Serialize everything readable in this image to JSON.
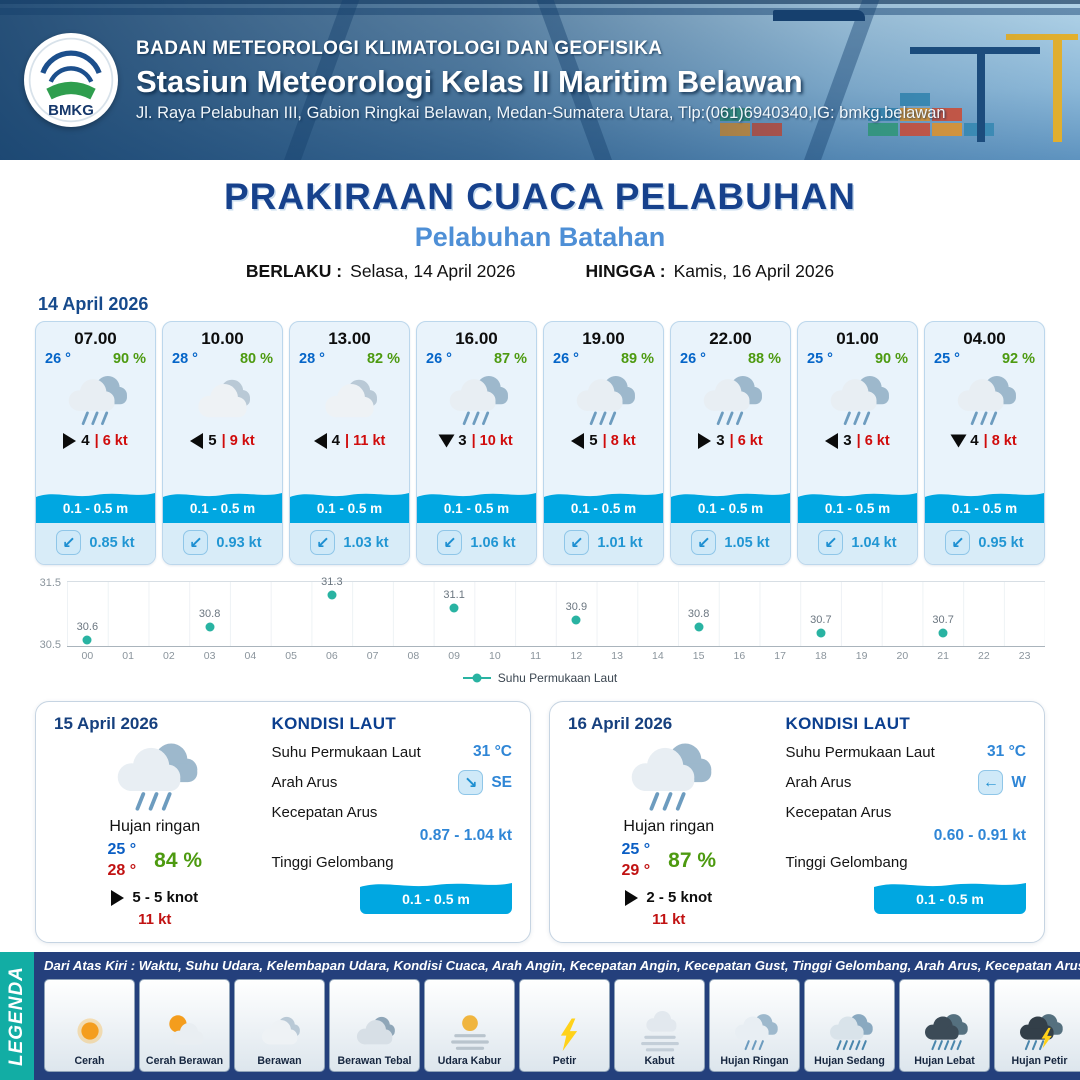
{
  "header": {
    "logo": "BMKG",
    "agency": "BADAN METEOROLOGI KLIMATOLOGI DAN GEOFISIKA",
    "station": "Stasiun Meteorologi Kelas II Maritim Belawan",
    "address": "Jl. Raya Pelabuhan III, Gabion Ringkai Belawan, Medan-Sumatera Utara, Tlp:(061)6940340,IG: bmkg.belawan"
  },
  "title": {
    "main": "PRAKIRAAN CUACA PELABUHAN",
    "port": "Pelabuhan Batahan",
    "berlaku_label": "BERLAKU :",
    "berlaku": "Selasa, 14 April 2026",
    "hingga_label": "HINGGA :",
    "hingga": "Kamis, 16 April 2026",
    "date_label": "14 April 2026"
  },
  "hourly": [
    {
      "time": "07.00",
      "temp": "26 °",
      "rh": "90 %",
      "icon": "hujan-ringan",
      "wind_arrow": "right",
      "wind": "4",
      "gust": "| 6 kt",
      "wave": "0.1 - 0.5 m",
      "current_arrow": "↙",
      "current": "0.85 kt"
    },
    {
      "time": "10.00",
      "temp": "28 °",
      "rh": "80 %",
      "icon": "berawan",
      "wind_arrow": "left",
      "wind": "5",
      "gust": "| 9 kt",
      "wave": "0.1 - 0.5 m",
      "current_arrow": "↙",
      "current": "0.93 kt"
    },
    {
      "time": "13.00",
      "temp": "28 °",
      "rh": "82 %",
      "icon": "berawan",
      "wind_arrow": "left",
      "wind": "4",
      "gust": "| 11 kt",
      "wave": "0.1 - 0.5 m",
      "current_arrow": "↙",
      "current": "1.03 kt"
    },
    {
      "time": "16.00",
      "temp": "26 °",
      "rh": "87 %",
      "icon": "hujan-ringan",
      "wind_arrow": "down",
      "wind": "3",
      "gust": "| 10 kt",
      "wave": "0.1 - 0.5 m",
      "current_arrow": "↙",
      "current": "1.06 kt"
    },
    {
      "time": "19.00",
      "temp": "26 °",
      "rh": "89 %",
      "icon": "hujan-ringan",
      "wind_arrow": "left",
      "wind": "5",
      "gust": "| 8 kt",
      "wave": "0.1 - 0.5 m",
      "current_arrow": "↙",
      "current": "1.01 kt"
    },
    {
      "time": "22.00",
      "temp": "26 °",
      "rh": "88 %",
      "icon": "hujan-ringan",
      "wind_arrow": "right",
      "wind": "3",
      "gust": "| 6 kt",
      "wave": "0.1 - 0.5 m",
      "current_arrow": "↙",
      "current": "1.05 kt"
    },
    {
      "time": "01.00",
      "temp": "25 °",
      "rh": "90 %",
      "icon": "hujan-ringan",
      "wind_arrow": "left",
      "wind": "3",
      "gust": "| 6 kt",
      "wave": "0.1 - 0.5 m",
      "current_arrow": "↙",
      "current": "1.04 kt"
    },
    {
      "time": "04.00",
      "temp": "25 °",
      "rh": "92 %",
      "icon": "hujan-ringan",
      "wind_arrow": "down",
      "wind": "4",
      "gust": "| 8 kt",
      "wave": "0.1 - 0.5 m",
      "current_arrow": "↙",
      "current": "0.95 kt"
    }
  ],
  "chart_data": {
    "type": "scatter",
    "x": [
      0,
      3,
      6,
      9,
      12,
      15,
      18,
      21
    ],
    "values": [
      30.6,
      30.8,
      31.3,
      31.1,
      30.9,
      30.8,
      30.7,
      30.7
    ],
    "x_ticks": [
      "00",
      "01",
      "02",
      "03",
      "04",
      "05",
      "06",
      "07",
      "08",
      "09",
      "10",
      "11",
      "12",
      "13",
      "14",
      "15",
      "16",
      "17",
      "18",
      "19",
      "20",
      "21",
      "22",
      "23"
    ],
    "ylim": [
      30.5,
      31.5
    ],
    "y_ticks": [
      "31.5",
      "30.5"
    ],
    "legend": "Suhu Permukaan Laut",
    "dot_color": "#29b3a2",
    "grid": true,
    "legend_position": "bottom"
  },
  "daily": [
    {
      "date": "15 April 2026",
      "icon": "hujan-ringan",
      "condition": "Hujan ringan",
      "temp_min": "25 °",
      "temp_max": "28 °",
      "rh": "84 %",
      "wind_arrow": "right",
      "wind": "5 - 5 knot",
      "gust": "11 kt",
      "sea_title": "KONDISI LAUT",
      "sst_label": "Suhu Permukaan Laut",
      "sst": "31 °C",
      "current_dir_label": "Arah Arus",
      "current_arrow": "↘",
      "current_dir": "SE",
      "current_speed_label": "Kecepatan Arus",
      "current_speed": "0.87 - 1.04 kt",
      "wave_label": "Tinggi Gelombang",
      "wave": "0.1 - 0.5 m"
    },
    {
      "date": "16 April 2026",
      "icon": "hujan-ringan",
      "condition": "Hujan ringan",
      "temp_min": "25 °",
      "temp_max": "29 °",
      "rh": "87 %",
      "wind_arrow": "right",
      "wind": "2 - 5 knot",
      "gust": "11 kt",
      "sea_title": "KONDISI LAUT",
      "sst_label": "Suhu Permukaan Laut",
      "sst": "31 °C",
      "current_dir_label": "Arah Arus",
      "current_arrow": "←",
      "current_dir": "W",
      "current_speed_label": "Kecepatan Arus",
      "current_speed": "0.60 - 0.91 kt",
      "wave_label": "Tinggi Gelombang",
      "wave": "0.1 - 0.5 m"
    }
  ],
  "legend_bar": {
    "label": "LEGENDA",
    "note": "Dari Atas Kiri : Waktu, Suhu Udara, Kelembapan Udara, Kondisi Cuaca, Arah Angin, Kecepatan Angin, Kecepatan Gust, Tinggi Gelombang, Arah Arus, Kecepatan Arus",
    "items": [
      {
        "label": "Cerah",
        "icon": "cerah"
      },
      {
        "label": "Cerah Berawan",
        "icon": "cerah-berawan"
      },
      {
        "label": "Berawan",
        "icon": "berawan"
      },
      {
        "label": "Berawan Tebal",
        "icon": "berawan-tebal"
      },
      {
        "label": "Udara Kabur",
        "icon": "udara-kabur"
      },
      {
        "label": "Petir",
        "icon": "petir"
      },
      {
        "label": "Kabut",
        "icon": "kabut"
      },
      {
        "label": "Hujan Ringan",
        "icon": "hujan-ringan"
      },
      {
        "label": "Hujan Sedang",
        "icon": "hujan-sedang"
      },
      {
        "label": "Hujan Lebat",
        "icon": "hujan-lebat"
      },
      {
        "label": "Hujan Petir",
        "icon": "hujan-petir"
      }
    ]
  }
}
